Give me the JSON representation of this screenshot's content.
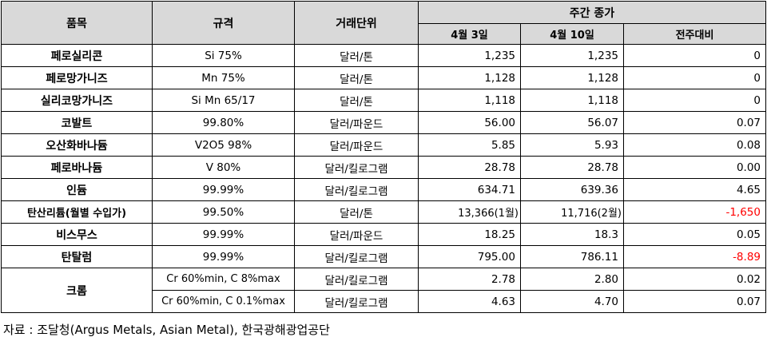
{
  "header": {
    "item": "품목",
    "spec": "규격",
    "unit": "거래단위",
    "weekly_close": "주간 종가",
    "date1": "4월 3일",
    "date2": "4월 10일",
    "change": "전주대비"
  },
  "rows": [
    {
      "name": "페로실리콘",
      "spec": "Si 75%",
      "unit": "달러/톤",
      "v1": "1,235",
      "v2": "1,235",
      "chg": "0"
    },
    {
      "name": "페로망가니즈",
      "spec": "Mn 75%",
      "unit": "달러/톤",
      "v1": "1,128",
      "v2": "1,128",
      "chg": "0"
    },
    {
      "name": "실리코망가니즈",
      "spec": "Si Mn 65/17",
      "unit": "달러/톤",
      "v1": "1,118",
      "v2": "1,118",
      "chg": "0"
    },
    {
      "name": "코발트",
      "spec": "99.80%",
      "unit": "달러/파운드",
      "v1": "56.00",
      "v2": "56.07",
      "chg": "0.07"
    },
    {
      "name": "오산화바나듐",
      "spec": "V2O5 98%",
      "unit": "달러/파운드",
      "v1": "5.85",
      "v2": "5.93",
      "chg": "0.08"
    },
    {
      "name": "페로바나듐",
      "spec": "V 80%",
      "unit": "달러/킬로그램",
      "v1": "28.78",
      "v2": "28.78",
      "chg": "0.00"
    },
    {
      "name": "인듐",
      "spec": "99.99%",
      "unit": "달러/킬로그램",
      "v1": "634.71",
      "v2": "639.36",
      "chg": "4.65"
    },
    {
      "name": "탄산리튬(월별 수입가)",
      "spec": "99.50%",
      "unit": "달러/톤",
      "v1": "13,366(1월)",
      "v2": "11,716(2월)",
      "chg": "-1,650"
    },
    {
      "name": "비스무스",
      "spec": "99.99%",
      "unit": "달러/파운드",
      "v1": "18.25",
      "v2": "18.3",
      "chg": "0.05"
    },
    {
      "name": "탄탈럼",
      "spec": "99.99%",
      "unit": "달러/킬로그램",
      "v1": "795.00",
      "v2": "786.11",
      "chg": "-8.89"
    }
  ],
  "chromium": {
    "name": "크롬",
    "rows": [
      {
        "spec": "Cr 60%min, C 8%max",
        "unit": "달러/킬로그램",
        "v1": "2.78",
        "v2": "2.80",
        "chg": "0.02"
      },
      {
        "spec": "Cr 60%min, C 0.1%max",
        "unit": "달러/킬로그램",
        "v1": "4.63",
        "v2": "4.70",
        "chg": "0.07"
      }
    ]
  },
  "negative_color": "#ff0000",
  "source": "자료 : 조달청(Argus Metals, Asian Metal), 한국광해광업공단"
}
